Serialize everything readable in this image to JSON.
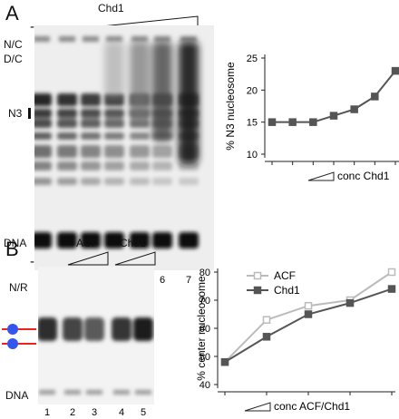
{
  "panel_a": {
    "letter": "A",
    "minus_label": "-",
    "protein_label": "Chd1",
    "band_labels": {
      "nc": "N/C",
      "dc": "D/C",
      "n3": "N3",
      "dna": "DNA"
    },
    "lanes": [
      "1",
      "2",
      "3",
      "4",
      "5",
      "6",
      "7"
    ]
  },
  "panel_b": {
    "letter": "B",
    "minus_label": "-",
    "protein_labels": [
      "ACF",
      "Chd1"
    ],
    "band_labels": {
      "nr": "N/R",
      "dna": "DNA"
    },
    "lanes": [
      "1",
      "2",
      "3",
      "4",
      "5"
    ]
  },
  "colors": {
    "chd1": "#555555",
    "acf": "#bbbbbb",
    "nucleosome": "#3355ee",
    "dna_line": "#ee2222"
  },
  "chart_data": [
    {
      "type": "line",
      "ylabel": "% N3 nucleosome",
      "xlabel": "conc Chd1",
      "ylim": [
        10,
        25
      ],
      "yticks": [
        "10",
        "15",
        "20",
        "25"
      ],
      "grid": false,
      "series": [
        {
          "values": [
            15,
            15,
            15,
            16,
            17,
            19,
            23
          ]
        }
      ]
    },
    {
      "type": "line",
      "ylabel": "% center nucleosome",
      "xlabel": "conc ACF/Chd1",
      "ylim": [
        40,
        80
      ],
      "yticks": [
        "40",
        "50",
        "60",
        "70",
        "80"
      ],
      "grid": false,
      "legend": "top-right",
      "series": [
        {
          "name": "ACF",
          "values": [
            48,
            63,
            68,
            70,
            80
          ]
        },
        {
          "name": "Chd1",
          "values": [
            48,
            57,
            65,
            69,
            74
          ]
        }
      ]
    }
  ]
}
